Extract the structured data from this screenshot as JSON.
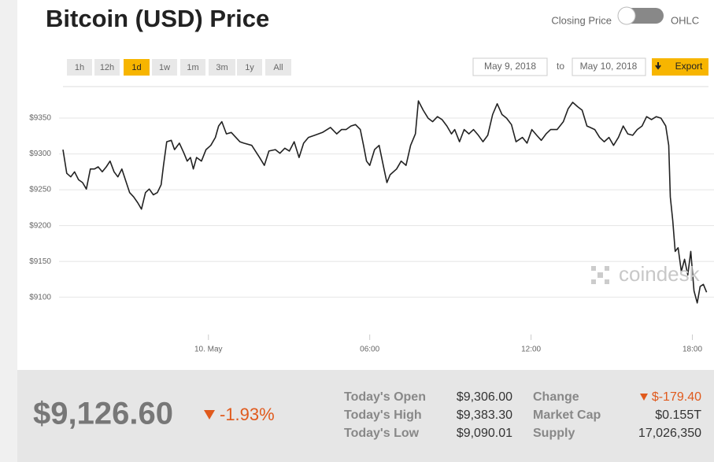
{
  "header": {
    "title": "Bitcoin (USD) Price",
    "toggle_left": "Closing Price",
    "toggle_right": "OHLC"
  },
  "ranges": {
    "buttons": [
      "1h",
      "12h",
      "1d",
      "1w",
      "1m",
      "3m",
      "1y",
      "All"
    ],
    "active": 2
  },
  "dates": {
    "from": "May 9, 2018",
    "separator": "to",
    "to": "May 10, 2018",
    "export": "Export"
  },
  "watermark": "coindesk",
  "chart_data": {
    "type": "line",
    "color": "#222222",
    "grid": true,
    "xlim": [
      -5.41,
      18.6
    ],
    "ylim": [
      9048,
      9394
    ],
    "xticks": [
      {
        "value": 0,
        "label": "10. May"
      },
      {
        "value": 6,
        "label": "06:00"
      },
      {
        "value": 12,
        "label": "12:00"
      },
      {
        "value": 18,
        "label": "18:00"
      }
    ],
    "yticks": [
      {
        "value": 9100,
        "label": "$9100"
      },
      {
        "value": 9150,
        "label": "$9150"
      },
      {
        "value": 9200,
        "label": "$9200"
      },
      {
        "value": 9250,
        "label": "$9250"
      },
      {
        "value": 9300,
        "label": "$9300"
      },
      {
        "value": 9350,
        "label": "$9350"
      }
    ],
    "x": [
      -5.41,
      -5.27,
      -5.12,
      -4.98,
      -4.83,
      -4.68,
      -4.54,
      -4.39,
      -4.24,
      -4.1,
      -3.95,
      -3.8,
      -3.66,
      -3.51,
      -3.37,
      -3.22,
      -3.07,
      -2.93,
      -2.78,
      -2.63,
      -2.49,
      -2.34,
      -2.2,
      -2.05,
      -1.9,
      -1.76,
      -1.67,
      -1.55,
      -1.38,
      -1.26,
      -1.08,
      -0.91,
      -0.79,
      -0.67,
      -0.56,
      -0.44,
      -0.26,
      -0.09,
      0.09,
      0.26,
      0.38,
      0.5,
      0.67,
      0.85,
      1.02,
      1.17,
      1.32,
      1.61,
      1.9,
      2.08,
      2.25,
      2.49,
      2.66,
      2.84,
      3.01,
      3.19,
      3.37,
      3.54,
      3.72,
      3.95,
      4.24,
      4.54,
      4.77,
      4.95,
      5.12,
      5.3,
      5.47,
      5.65,
      5.77,
      5.88,
      6.0,
      6.18,
      6.35,
      6.53,
      6.64,
      6.76,
      7.0,
      7.17,
      7.35,
      7.52,
      7.7,
      7.81,
      7.99,
      8.17,
      8.34,
      8.52,
      8.69,
      8.87,
      9.04,
      9.16,
      9.34,
      9.51,
      9.69,
      9.86,
      10.04,
      10.21,
      10.39,
      10.57,
      10.74,
      10.92,
      11.09,
      11.27,
      11.44,
      11.68,
      11.85,
      12.03,
      12.21,
      12.38,
      12.56,
      12.73,
      12.97,
      13.2,
      13.38,
      13.55,
      13.73,
      13.9,
      14.08,
      14.2,
      14.37,
      14.55,
      14.72,
      14.9,
      15.07,
      15.25,
      15.43,
      15.6,
      15.78,
      15.95,
      16.13,
      16.3,
      16.48,
      16.66,
      16.83,
      17.01,
      17.12,
      17.18,
      17.27,
      17.36,
      17.47,
      17.59,
      17.71,
      17.83,
      17.94,
      18.06,
      18.18,
      18.29,
      18.41,
      18.53
    ],
    "values": [
      9306,
      9273,
      9268,
      9275,
      9264,
      9260,
      9251,
      9279,
      9279,
      9282,
      9275,
      9282,
      9290,
      9275,
      9268,
      9279,
      9262,
      9246,
      9240,
      9232,
      9223,
      9246,
      9251,
      9243,
      9246,
      9257,
      9284,
      9317,
      9319,
      9306,
      9315,
      9301,
      9290,
      9295,
      9279,
      9295,
      9290,
      9306,
      9312,
      9323,
      9339,
      9345,
      9328,
      9330,
      9323,
      9317,
      9315,
      9312,
      9295,
      9284,
      9304,
      9306,
      9301,
      9308,
      9304,
      9317,
      9295,
      9315,
      9323,
      9326,
      9330,
      9337,
      9328,
      9334,
      9334,
      9339,
      9341,
      9334,
      9312,
      9290,
      9284,
      9306,
      9312,
      9279,
      9260,
      9271,
      9279,
      9290,
      9284,
      9312,
      9328,
      9374,
      9361,
      9350,
      9345,
      9352,
      9348,
      9339,
      9328,
      9334,
      9317,
      9334,
      9328,
      9334,
      9326,
      9317,
      9326,
      9355,
      9370,
      9355,
      9350,
      9341,
      9317,
      9323,
      9315,
      9334,
      9326,
      9319,
      9328,
      9334,
      9334,
      9345,
      9363,
      9372,
      9366,
      9361,
      9339,
      9337,
      9334,
      9323,
      9317,
      9323,
      9312,
      9323,
      9339,
      9328,
      9326,
      9334,
      9339,
      9352,
      9348,
      9352,
      9350,
      9339,
      9312,
      9240,
      9207,
      9164,
      9169,
      9136,
      9153,
      9131,
      9164,
      9109,
      9092,
      9115,
      9118,
      9107
    ]
  },
  "summary": {
    "price": "$9,126.60",
    "change_pct": "-1.93%",
    "left": [
      [
        "Today's Open",
        "$9,306.00"
      ],
      [
        "Today's High",
        "$9,383.30"
      ],
      [
        "Today's Low",
        "$9,090.01"
      ]
    ],
    "right": [
      [
        "Change",
        "$-179.40"
      ],
      [
        "Market Cap",
        "$0.155T"
      ],
      [
        "Supply",
        "17,026,350"
      ]
    ]
  }
}
